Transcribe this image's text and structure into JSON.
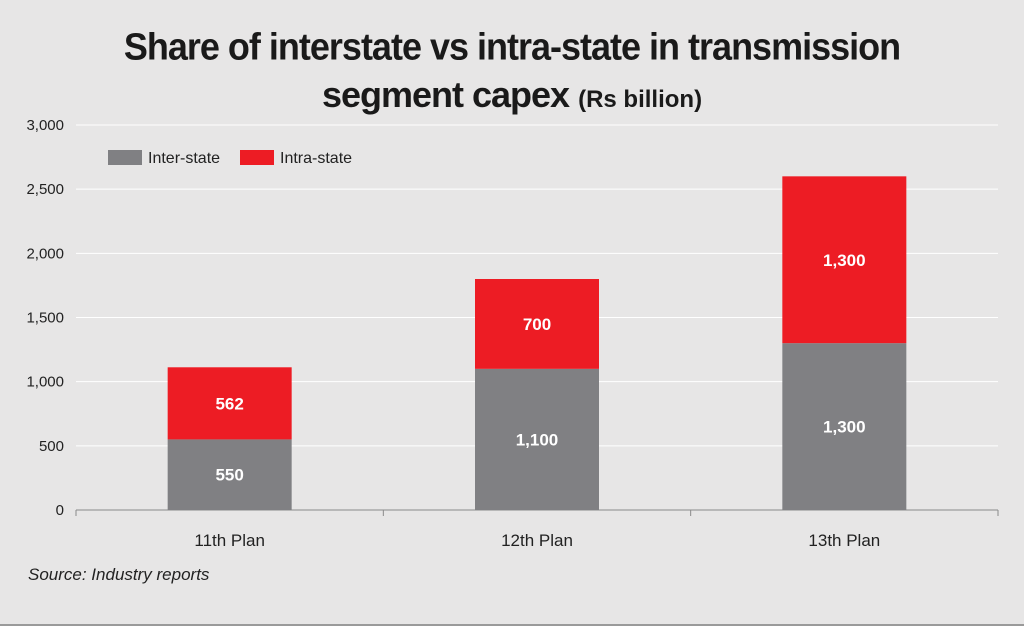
{
  "title": {
    "line1": "Share of interstate vs intra-state in transmission",
    "line2": "segment capex",
    "unit": "(Rs billion)"
  },
  "source": "Source: Industry reports",
  "colors": {
    "inter_state": "#808083",
    "intra_state": "#ed1c24",
    "gridline": "#ffffff",
    "axis": "#8a8a8a"
  },
  "chart_data": {
    "type": "bar",
    "stacked": true,
    "categories": [
      "11th Plan",
      "12th Plan",
      "13th Plan"
    ],
    "series": [
      {
        "name": "Inter-state",
        "values": [
          550,
          1100,
          1300
        ],
        "labels": [
          "550",
          "1,100",
          "1,300"
        ]
      },
      {
        "name": "Intra-state",
        "values": [
          562,
          700,
          1300
        ],
        "labels": [
          "562",
          "700",
          "1,300"
        ]
      }
    ],
    "ylim": [
      0,
      3000
    ],
    "yticks": [
      0,
      500,
      1000,
      1500,
      2000,
      2500,
      3000
    ],
    "ytick_labels": [
      "0",
      "500",
      "1,000",
      "1,500",
      "2,000",
      "2,500",
      "3,000"
    ],
    "grid": true,
    "legend_position": "top-left"
  }
}
